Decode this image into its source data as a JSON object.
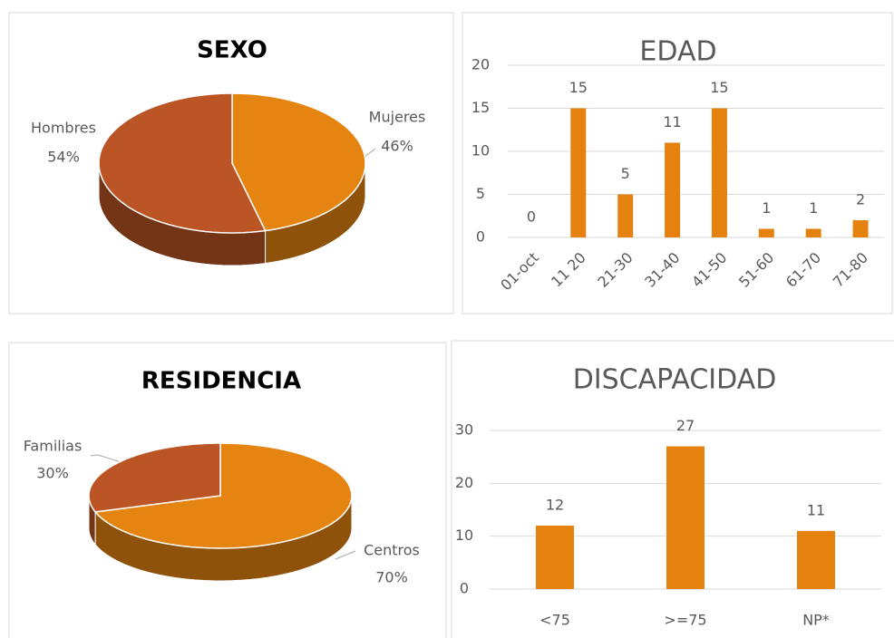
{
  "chart_data": [
    {
      "type": "pie",
      "title": "SEXO",
      "categories": [
        "Mujeres",
        "Hombres"
      ],
      "values": [
        46,
        54
      ],
      "value_labels": [
        "46%",
        "54%"
      ],
      "colors": [
        "#e58410",
        "#bb5525"
      ]
    },
    {
      "type": "bar",
      "title": "EDAD",
      "categories": [
        "01-oct",
        "11 20",
        "21-30",
        "31-40",
        "41-50",
        "51-60",
        "61-70",
        "71-80"
      ],
      "values": [
        0,
        15,
        5,
        11,
        15,
        1,
        1,
        2
      ],
      "color": "#e5820f",
      "ylim": [
        0,
        20
      ],
      "yticks": [
        0,
        5,
        10,
        15,
        20
      ],
      "grid": true
    },
    {
      "type": "pie",
      "title": "RESIDENCIA",
      "categories": [
        "Centros",
        "Familias"
      ],
      "values": [
        70,
        30
      ],
      "value_labels": [
        "70%",
        "30%"
      ],
      "colors": [
        "#e58410",
        "#bb5525"
      ]
    },
    {
      "type": "bar",
      "title": "DISCAPACIDAD",
      "categories": [
        "<75",
        ">=75",
        "NP*"
      ],
      "values": [
        12,
        27,
        11
      ],
      "color": "#e5820f",
      "ylim": [
        0,
        30
      ],
      "yticks": [
        0,
        10,
        20,
        30
      ],
      "grid": true
    }
  ]
}
